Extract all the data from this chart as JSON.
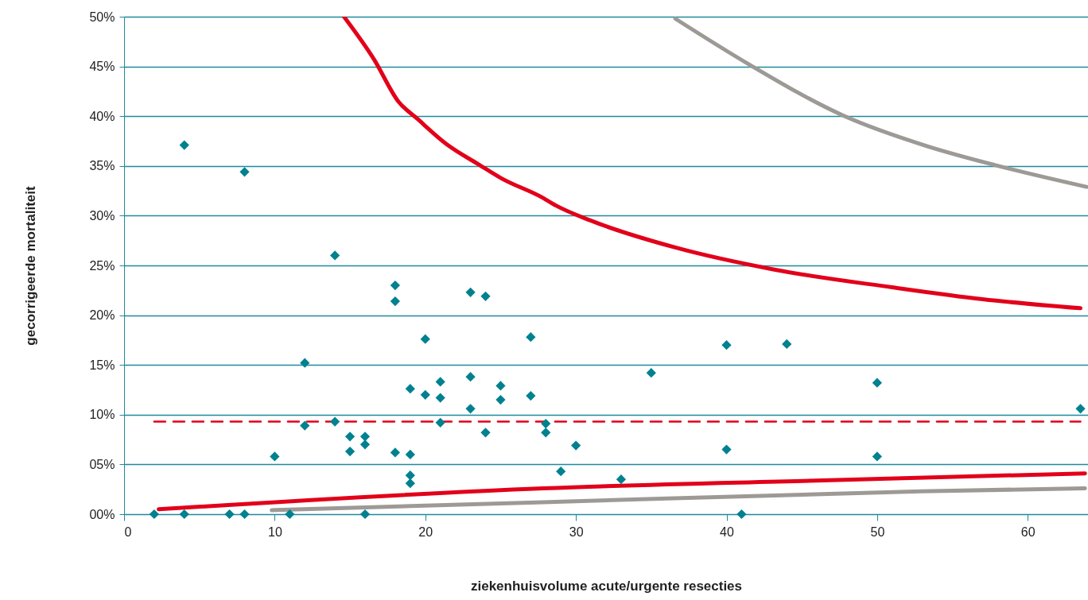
{
  "chart_data": {
    "type": "scatter",
    "xlabel": "ziekenhuisvolume  acute/urgente resecties",
    "ylabel": "gecorrigeerde mortaliteit",
    "xlim": [
      0,
      64
    ],
    "xticks": [
      0,
      10,
      20,
      30,
      40,
      50,
      60
    ],
    "ylim": [
      0,
      50
    ],
    "yticks": [
      {
        "value": 0,
        "label": "00%"
      },
      {
        "value": 5,
        "label": "05%"
      },
      {
        "value": 10,
        "label": "10%"
      },
      {
        "value": 15,
        "label": "15%"
      },
      {
        "value": 20,
        "label": "20%"
      },
      {
        "value": 25,
        "label": "25%"
      },
      {
        "value": 30,
        "label": "30%"
      },
      {
        "value": 35,
        "label": "35%"
      },
      {
        "value": 40,
        "label": "40%"
      },
      {
        "value": 45,
        "label": "45%"
      },
      {
        "value": 50,
        "label": "50%"
      }
    ],
    "grid": "y",
    "series": [
      {
        "type": "line",
        "color": "#9d9a96",
        "line_style": "solid",
        "marker": "none",
        "x": [
          36.6,
          41.5,
          47.7,
          53.3,
          57.8,
          63.9
        ],
        "values": [
          49.8,
          45.2,
          40.1,
          37,
          35.1,
          32.9
        ]
      },
      {
        "type": "line",
        "color": "#e2001a",
        "line_style": "solid",
        "marker": "none",
        "x": [
          14.6,
          16.6,
          18.2,
          19.5,
          21.4,
          23.6,
          25,
          27.8,
          28.7,
          31,
          36.6,
          43.1,
          51,
          57,
          63.5
        ],
        "values": [
          50,
          45.7,
          41.5,
          39.7,
          37.2,
          35.1,
          33.8,
          31.8,
          31,
          29.5,
          26.8,
          24.6,
          22.8,
          21.6,
          20.7
        ]
      },
      {
        "type": "line",
        "color": "#e2001a",
        "line_style": "dashed",
        "marker": "none",
        "x": [
          2,
          63.5
        ],
        "values": [
          9.3,
          9.3
        ]
      },
      {
        "type": "line",
        "color": "#e2001a",
        "line_style": "solid",
        "marker": "none",
        "x": [
          2.3,
          27.8,
          46.4,
          63.8
        ],
        "values": [
          0.5,
          2.6,
          3.4,
          4.1
        ]
      },
      {
        "type": "line",
        "color": "#9d9a96",
        "line_style": "solid",
        "marker": "none",
        "x": [
          9.8,
          27.8,
          52.9,
          63.8
        ],
        "values": [
          0.4,
          1.2,
          2.3,
          2.6
        ]
      },
      {
        "type": "scatter",
        "color": "#00818f",
        "marker": "diamond",
        "x": [
          2,
          4,
          4,
          7,
          8,
          8,
          10,
          11,
          12,
          12,
          14,
          14,
          15,
          15,
          16,
          16,
          16,
          18,
          18,
          18,
          19,
          19,
          19,
          19,
          20,
          20,
          21,
          21,
          21,
          23,
          23,
          23,
          24,
          24,
          25,
          25,
          27,
          27,
          28,
          28,
          29,
          30,
          33,
          35,
          40,
          40,
          41,
          44,
          50,
          50,
          63.5
        ],
        "values": [
          0,
          37.1,
          0,
          0,
          34.4,
          0,
          5.8,
          0,
          15.2,
          8.9,
          9.3,
          26,
          7.8,
          6.3,
          7.8,
          7.0,
          0,
          23,
          21.4,
          6.2,
          12.6,
          6.0,
          3.9,
          3.1,
          17.6,
          12,
          13.3,
          11.7,
          9.2,
          22.3,
          13.8,
          10.6,
          21.9,
          8.2,
          12.9,
          11.5,
          17.8,
          11.9,
          9.1,
          8.2,
          4.3,
          6.9,
          3.5,
          14.2,
          6.5,
          17,
          0,
          17.1,
          13.2,
          5.8,
          10.6
        ]
      }
    ]
  }
}
